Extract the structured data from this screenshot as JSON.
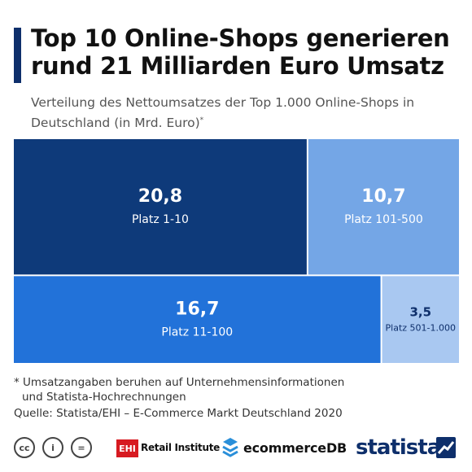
{
  "header": {
    "title": "Top 10 Online-Shops generieren rund 21 Milliarden Euro Umsatz",
    "subtitle": "Verteilung des Nettoumsatzes der Top 1.000 Online-Shops in Deutschland (in Mrd. Euro)",
    "subtitle_mark": "*"
  },
  "chart_data": {
    "type": "treemap",
    "title": "Top 10 Online-Shops generieren rund 21 Milliarden Euro Umsatz",
    "subtitle": "Verteilung des Nettoumsatzes der Top 1.000 Online-Shops in Deutschland (in Mrd. Euro)",
    "unit": "Mrd. Euro",
    "items": [
      {
        "label": "Platz 1-10",
        "value": 20.8,
        "value_label": "20,8",
        "color": "#0e3a7a"
      },
      {
        "label": "Platz 101-500",
        "value": 10.7,
        "value_label": "10,7",
        "color": "#74a6e6"
      },
      {
        "label": "Platz 11-100",
        "value": 16.7,
        "value_label": "16,7",
        "color": "#2272d9"
      },
      {
        "label": "Platz 501-1.000",
        "value": 3.5,
        "value_label": "3,5",
        "color": "#a9c8f1"
      }
    ]
  },
  "footnote": {
    "line1": "* Umsatzangaben beruhen auf Unternehmensinformationen",
    "line2": "und Statista-Hochrechnungen"
  },
  "source": "Quelle: Statista/EHI – E-Commerce Markt Deutschland 2020",
  "footer": {
    "cc_labels": [
      "cc",
      "i",
      "="
    ],
    "ehi_logo": "EHI",
    "ehi_text": "Retail Institute",
    "ecommercedb_text": "ecommerceDB",
    "statista_text": "statista"
  }
}
